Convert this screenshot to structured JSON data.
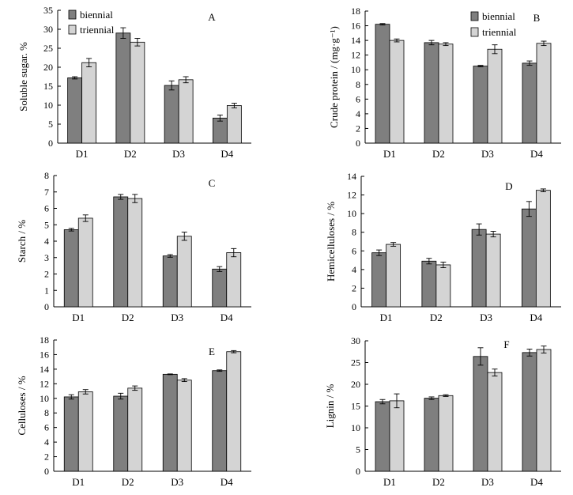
{
  "legend_labels": [
    "biennial",
    "triennial"
  ],
  "colors": {
    "biennial": "#7f7f7f",
    "triennial": "#d4d4d4",
    "axis": "#000000"
  },
  "chart_data": [
    {
      "type": "bar",
      "letter": "A",
      "ylabel": "Soluble sugar. %",
      "ylim": [
        0,
        35
      ],
      "yticks": [
        0,
        5,
        10,
        15,
        20,
        25,
        30,
        35
      ],
      "categories": [
        "D1",
        "D2",
        "D3",
        "D4"
      ],
      "series": [
        {
          "name": "biennial",
          "values": [
            17.2,
            29.0,
            15.2,
            6.6
          ],
          "errors": [
            0.3,
            1.4,
            1.2,
            0.8
          ]
        },
        {
          "name": "triennial",
          "values": [
            21.2,
            26.6,
            16.7,
            9.9
          ],
          "errors": [
            1.1,
            1.0,
            0.8,
            0.6
          ]
        }
      ],
      "legend": "top-left"
    },
    {
      "type": "bar",
      "letter": "B",
      "ylabel": "Crude protein / (mg·g⁻¹)",
      "ylim": [
        0,
        18
      ],
      "yticks": [
        0,
        2,
        4,
        6,
        8,
        10,
        12,
        14,
        16,
        18
      ],
      "categories": [
        "D1",
        "D2",
        "D3",
        "D4"
      ],
      "series": [
        {
          "name": "biennial",
          "values": [
            16.2,
            13.7,
            10.5,
            10.9
          ],
          "errors": [
            0.1,
            0.3,
            0.1,
            0.3
          ]
        },
        {
          "name": "triennial",
          "values": [
            14.0,
            13.5,
            12.8,
            13.6
          ],
          "errors": [
            0.2,
            0.2,
            0.6,
            0.3
          ]
        }
      ],
      "legend": "top-right"
    },
    {
      "type": "bar",
      "letter": "C",
      "ylabel": "Starch / %",
      "ylim": [
        0,
        8
      ],
      "yticks": [
        0,
        1,
        2,
        3,
        4,
        5,
        6,
        7,
        8
      ],
      "categories": [
        "D1",
        "D2",
        "D3",
        "D4"
      ],
      "series": [
        {
          "name": "biennial",
          "values": [
            4.7,
            6.7,
            3.1,
            2.3
          ],
          "errors": [
            0.08,
            0.15,
            0.08,
            0.15
          ]
        },
        {
          "name": "triennial",
          "values": [
            5.4,
            6.6,
            4.3,
            3.3
          ],
          "errors": [
            0.2,
            0.25,
            0.25,
            0.25
          ]
        }
      ]
    },
    {
      "type": "bar",
      "letter": "D",
      "ylabel": "Hemicelluloses / %",
      "ylim": [
        0,
        14
      ],
      "yticks": [
        0,
        2,
        4,
        6,
        8,
        10,
        12,
        14
      ],
      "categories": [
        "D1",
        "D2",
        "D3",
        "D4"
      ],
      "series": [
        {
          "name": "biennial",
          "values": [
            5.8,
            4.9,
            8.3,
            10.5
          ],
          "errors": [
            0.3,
            0.3,
            0.6,
            0.8
          ]
        },
        {
          "name": "triennial",
          "values": [
            6.7,
            4.5,
            7.8,
            12.5
          ],
          "errors": [
            0.2,
            0.3,
            0.3,
            0.15
          ]
        }
      ]
    },
    {
      "type": "bar",
      "letter": "E",
      "ylabel": "Celluloses / %",
      "ylim": [
        0,
        18
      ],
      "yticks": [
        0,
        2,
        4,
        6,
        8,
        10,
        12,
        14,
        16,
        18
      ],
      "categories": [
        "D1",
        "D2",
        "D3",
        "D4"
      ],
      "series": [
        {
          "name": "biennial",
          "values": [
            10.2,
            10.3,
            13.3,
            13.8
          ],
          "errors": [
            0.3,
            0.4,
            0.05,
            0.1
          ]
        },
        {
          "name": "triennial",
          "values": [
            10.9,
            11.4,
            12.5,
            16.4
          ],
          "errors": [
            0.3,
            0.3,
            0.2,
            0.15
          ]
        }
      ]
    },
    {
      "type": "bar",
      "letter": "F",
      "ylabel": "Lignin / %",
      "ylim": [
        0,
        30
      ],
      "yticks": [
        0,
        5,
        10,
        15,
        20,
        25,
        30
      ],
      "categories": [
        "D1",
        "D2",
        "D3",
        "D4"
      ],
      "series": [
        {
          "name": "biennial",
          "values": [
            16.0,
            16.8,
            26.4,
            27.3
          ],
          "errors": [
            0.5,
            0.3,
            2.0,
            0.8
          ]
        },
        {
          "name": "triennial",
          "values": [
            16.2,
            17.4,
            22.7,
            28.0
          ],
          "errors": [
            1.6,
            0.2,
            0.8,
            0.8
          ]
        }
      ]
    }
  ]
}
